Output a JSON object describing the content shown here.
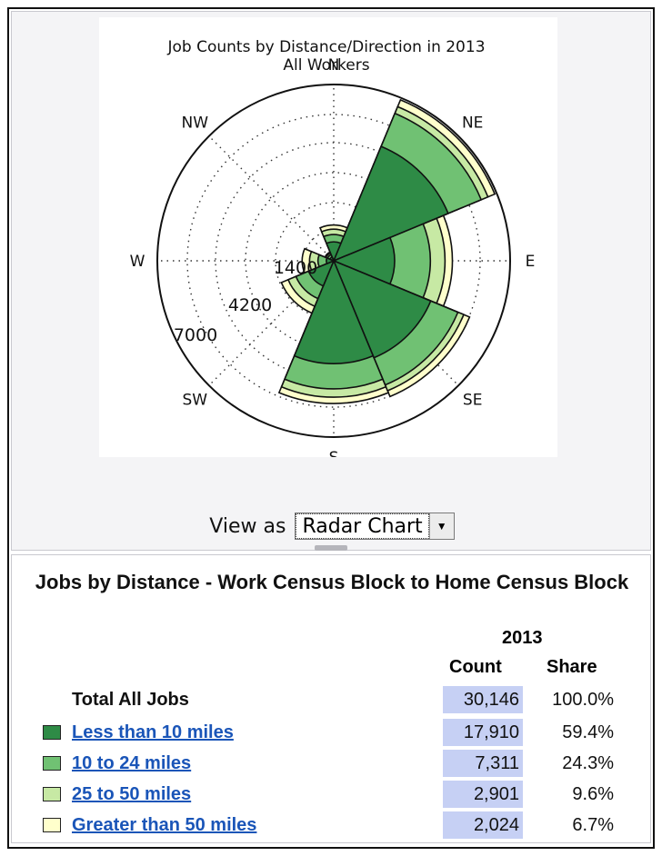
{
  "chart_data": {
    "type": "radar",
    "title": "Job Counts by Distance/Direction in 2013",
    "subtitle": "All Workers",
    "directions": [
      "N",
      "NE",
      "E",
      "SE",
      "S",
      "SW",
      "W",
      "NW"
    ],
    "radial_ticks": [
      "1400",
      "4200",
      "7000"
    ],
    "radial_max": 8400,
    "series": [
      {
        "name": "Less than 10 miles",
        "color": "#2e8b46",
        "cumulative_values": [
          900,
          5900,
          2900,
          5000,
          4900,
          1300,
          350,
          200
        ]
      },
      {
        "name": "10 to 24 miles",
        "color": "#70c173",
        "cumulative_values": [
          1250,
          7600,
          4600,
          6400,
          6100,
          1950,
          750,
          320
        ]
      },
      {
        "name": "25 to 50 miles",
        "color": "#c7e9a4",
        "cumulative_values": [
          1500,
          7950,
          5300,
          6700,
          6500,
          2350,
          1150,
          400
        ]
      },
      {
        "name": "Greater than 50 miles",
        "color": "#ffffcc",
        "cumulative_values": [
          1700,
          8300,
          5650,
          7000,
          6800,
          2700,
          1500,
          450
        ]
      }
    ]
  },
  "view": {
    "label": "View as",
    "selected": "Radar Chart"
  },
  "table": {
    "title": "Jobs by Distance - Work Census Block to Home Census Block",
    "year": "2013",
    "count_header": "Count",
    "share_header": "Share",
    "total": {
      "label": "Total All Jobs",
      "count": "30,146",
      "share": "100.0%"
    },
    "rows": [
      {
        "label": "Less than 10 miles",
        "count": "17,910",
        "share": "59.4%",
        "color": "#2e8b46"
      },
      {
        "label": "10 to 24 miles",
        "count": "7,311",
        "share": "24.3%",
        "color": "#70c173"
      },
      {
        "label": "25 to 50 miles",
        "count": "2,901",
        "share": "9.6%",
        "color": "#c7e9a4"
      },
      {
        "label": "Greater than 50 miles",
        "count": "2,024",
        "share": "6.7%",
        "color": "#ffffcc"
      }
    ]
  }
}
